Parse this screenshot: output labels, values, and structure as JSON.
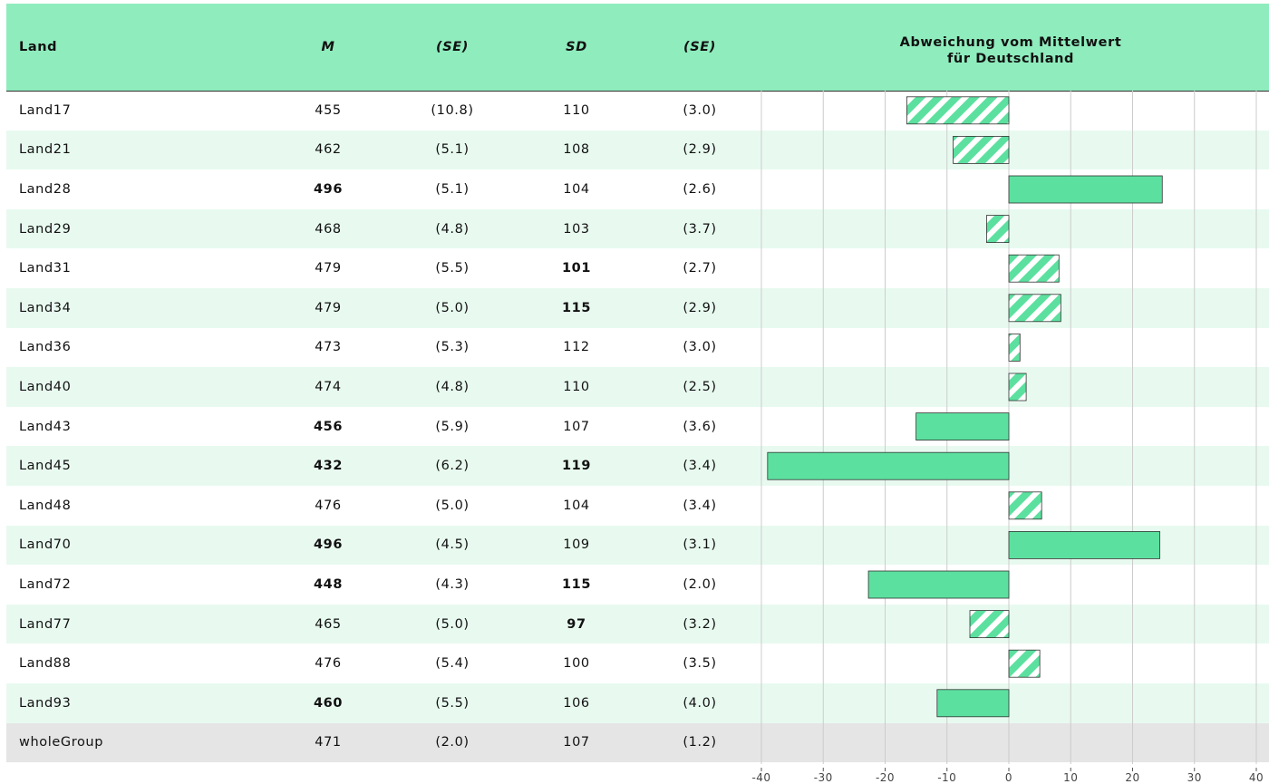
{
  "table": {
    "headers": {
      "land": "Land",
      "m": "M",
      "se1": "(SE)",
      "sd": "SD",
      "se2": "(SE)",
      "chart_title_line1": "Abweichung vom Mittelwert",
      "chart_title_line2": "für Deutschland"
    },
    "rows": [
      {
        "land": "Land17",
        "m": "455",
        "m_bold": false,
        "se1": "(10.8)",
        "sd": "110",
        "sd_bold": false,
        "se2": "(3.0)"
      },
      {
        "land": "Land21",
        "m": "462",
        "m_bold": false,
        "se1": "(5.1)",
        "sd": "108",
        "sd_bold": false,
        "se2": "(2.9)"
      },
      {
        "land": "Land28",
        "m": "496",
        "m_bold": true,
        "se1": "(5.1)",
        "sd": "104",
        "sd_bold": false,
        "se2": "(2.6)"
      },
      {
        "land": "Land29",
        "m": "468",
        "m_bold": false,
        "se1": "(4.8)",
        "sd": "103",
        "sd_bold": false,
        "se2": "(3.7)"
      },
      {
        "land": "Land31",
        "m": "479",
        "m_bold": false,
        "se1": "(5.5)",
        "sd": "101",
        "sd_bold": true,
        "se2": "(2.7)"
      },
      {
        "land": "Land34",
        "m": "479",
        "m_bold": false,
        "se1": "(5.0)",
        "sd": "115",
        "sd_bold": true,
        "se2": "(2.9)"
      },
      {
        "land": "Land36",
        "m": "473",
        "m_bold": false,
        "se1": "(5.3)",
        "sd": "112",
        "sd_bold": false,
        "se2": "(3.0)"
      },
      {
        "land": "Land40",
        "m": "474",
        "m_bold": false,
        "se1": "(4.8)",
        "sd": "110",
        "sd_bold": false,
        "se2": "(2.5)"
      },
      {
        "land": "Land43",
        "m": "456",
        "m_bold": true,
        "se1": "(5.9)",
        "sd": "107",
        "sd_bold": false,
        "se2": "(3.6)"
      },
      {
        "land": "Land45",
        "m": "432",
        "m_bold": true,
        "se1": "(6.2)",
        "sd": "119",
        "sd_bold": true,
        "se2": "(3.4)"
      },
      {
        "land": "Land48",
        "m": "476",
        "m_bold": false,
        "se1": "(5.0)",
        "sd": "104",
        "sd_bold": false,
        "se2": "(3.4)"
      },
      {
        "land": "Land70",
        "m": "496",
        "m_bold": true,
        "se1": "(4.5)",
        "sd": "109",
        "sd_bold": false,
        "se2": "(3.1)"
      },
      {
        "land": "Land72",
        "m": "448",
        "m_bold": true,
        "se1": "(4.3)",
        "sd": "115",
        "sd_bold": true,
        "se2": "(2.0)"
      },
      {
        "land": "Land77",
        "m": "465",
        "m_bold": false,
        "se1": "(5.0)",
        "sd": "97",
        "sd_bold": true,
        "se2": "(3.2)"
      },
      {
        "land": "Land88",
        "m": "476",
        "m_bold": false,
        "se1": "(5.4)",
        "sd": "100",
        "sd_bold": false,
        "se2": "(3.5)"
      },
      {
        "land": "Land93",
        "m": "460",
        "m_bold": true,
        "se1": "(5.5)",
        "sd": "106",
        "sd_bold": false,
        "se2": "(4.0)"
      },
      {
        "land": "wholeGroup",
        "m": "471",
        "m_bold": false,
        "se1": "(2.0)",
        "sd": "107",
        "sd_bold": false,
        "se2": "(1.2)",
        "total": true
      }
    ]
  },
  "chart_data": {
    "type": "bar",
    "orientation": "horizontal",
    "title": "Abweichung vom Mittelwert für Deutschland",
    "categories": [
      "Land17",
      "Land21",
      "Land28",
      "Land29",
      "Land31",
      "Land34",
      "Land36",
      "Land40",
      "Land43",
      "Land45",
      "Land48",
      "Land70",
      "Land72",
      "Land77",
      "Land88",
      "Land93"
    ],
    "values": [
      -16.5,
      -9,
      24.8,
      -3.6,
      8.1,
      8.4,
      1.8,
      2.8,
      -15,
      -39,
      5.3,
      24.4,
      -22.7,
      -6.3,
      5,
      -11.6
    ],
    "significant": [
      false,
      false,
      true,
      false,
      false,
      false,
      false,
      false,
      true,
      true,
      false,
      true,
      true,
      false,
      false,
      true
    ],
    "xlim": [
      -40,
      40
    ],
    "ticks": [
      -40,
      -30,
      -20,
      -10,
      0,
      10,
      20,
      30,
      40
    ],
    "grid": true,
    "colors": {
      "bar": "#5ce09f",
      "stripe": "#ffffff",
      "border": "#333333",
      "grid": "#cccccc",
      "alt_row": "#e8faf0",
      "header": "#8fecbd"
    }
  }
}
